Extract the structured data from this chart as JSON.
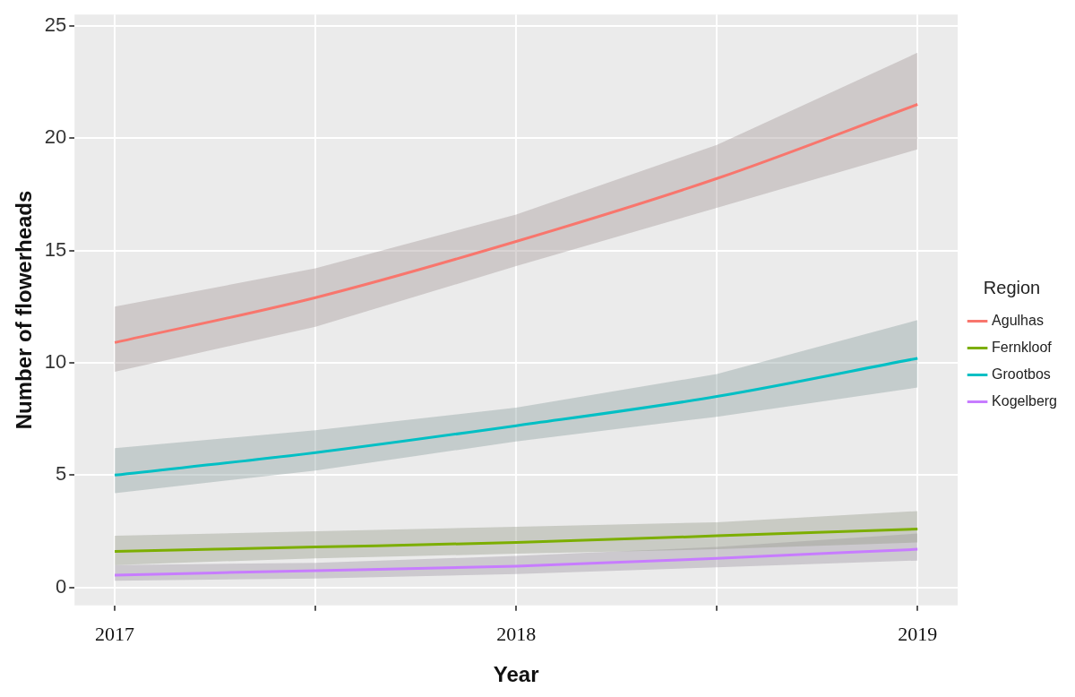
{
  "chart_data": {
    "type": "line",
    "xlabel": "Year",
    "ylabel": "Number of flowerheads",
    "legend_title": "Region",
    "legend": "right",
    "grid": true,
    "marker": "none",
    "line_style": "solid",
    "xlim": [
      2016.9,
      2019.1
    ],
    "xticks": [
      2017,
      {
        "value": 2017.5,
        "label": null
      },
      2018,
      {
        "value": 2018.5,
        "label": null
      },
      2019
    ],
    "ylim": [
      -0.8,
      25.5
    ],
    "yticks": [
      0,
      5,
      10,
      15,
      20,
      25
    ],
    "series": [
      {
        "name": "Agulhas",
        "color": "#f8766d",
        "x": [
          2017,
          2017.5,
          2018,
          2018.5,
          2019
        ],
        "values": [
          10.9,
          12.9,
          15.4,
          18.2,
          21.5
        ],
        "lower": [
          9.6,
          11.6,
          14.3,
          16.9,
          19.5
        ],
        "upper": [
          12.5,
          14.2,
          16.6,
          19.7,
          23.8
        ]
      },
      {
        "name": "Fernkloof",
        "color": "#7cae00",
        "x": [
          2017,
          2017.5,
          2018,
          2018.5,
          2019
        ],
        "values": [
          1.6,
          1.8,
          2.0,
          2.3,
          2.6
        ],
        "lower": [
          1.0,
          1.3,
          1.5,
          1.7,
          2.0
        ],
        "upper": [
          2.3,
          2.5,
          2.7,
          2.9,
          3.4
        ]
      },
      {
        "name": "Grootbos",
        "color": "#00bfc4",
        "x": [
          2017,
          2017.5,
          2018,
          2018.5,
          2019
        ],
        "values": [
          5.0,
          6.0,
          7.2,
          8.5,
          10.2
        ],
        "lower": [
          4.2,
          5.2,
          6.5,
          7.6,
          8.9
        ],
        "upper": [
          6.2,
          7.0,
          8.0,
          9.5,
          11.9
        ]
      },
      {
        "name": "Kogelberg",
        "color": "#c77cff",
        "x": [
          2017,
          2017.5,
          2018,
          2018.5,
          2019
        ],
        "values": [
          0.55,
          0.75,
          0.95,
          1.3,
          1.7
        ],
        "lower": [
          0.3,
          0.4,
          0.6,
          0.9,
          1.2
        ],
        "upper": [
          1.0,
          1.1,
          1.4,
          1.8,
          2.4
        ]
      }
    ]
  }
}
